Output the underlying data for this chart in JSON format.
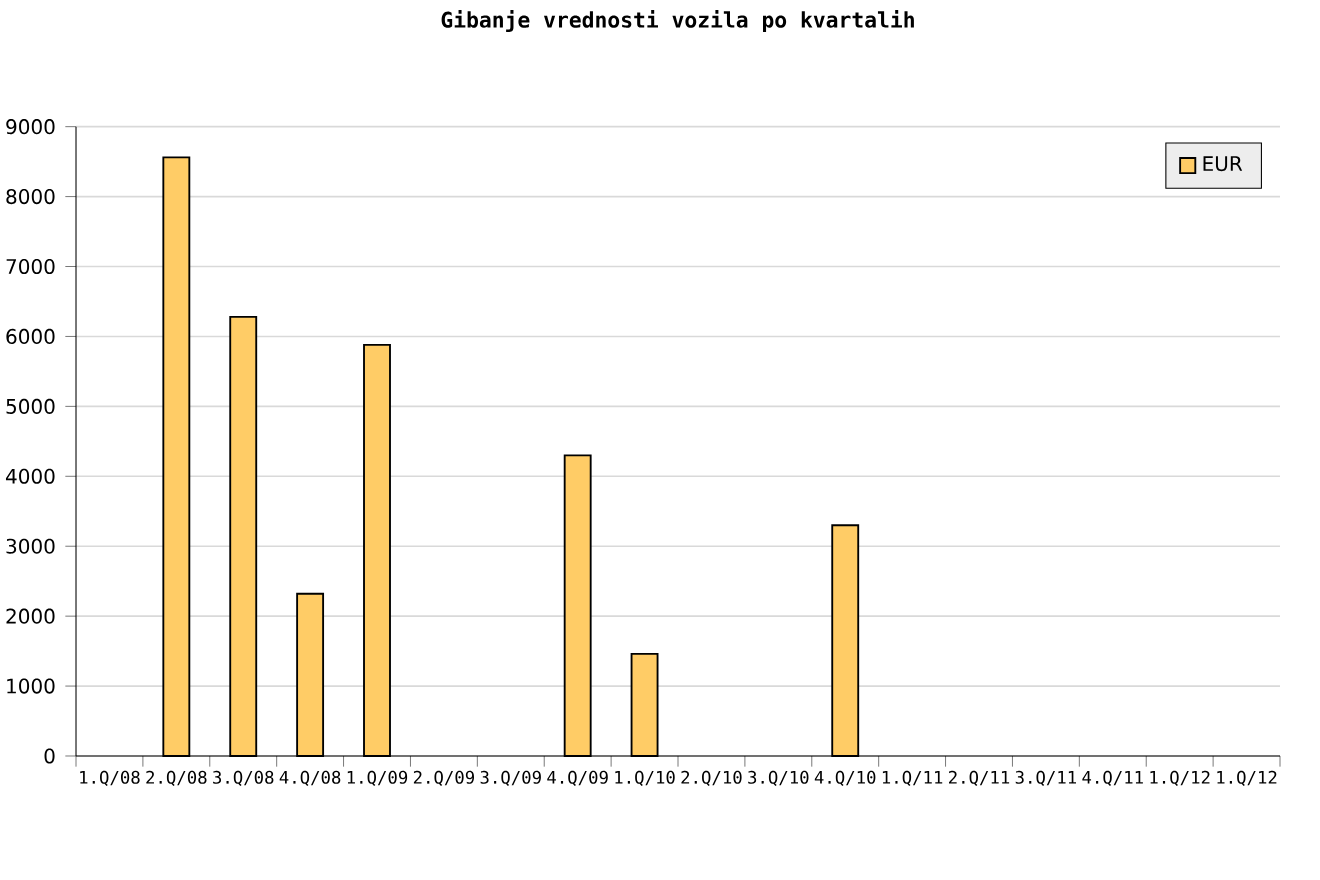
{
  "chart_data": {
    "type": "bar",
    "title": "Gibanje vrednosti vozila po kvartalih",
    "categories": [
      "1.Q/08",
      "2.Q/08",
      "3.Q/08",
      "4.Q/08",
      "1.Q/09",
      "2.Q/09",
      "3.Q/09",
      "4.Q/09",
      "1.Q/10",
      "2.Q/10",
      "3.Q/10",
      "4.Q/10",
      "1.Q/11",
      "2.Q/11",
      "3.Q/11",
      "4.Q/11",
      "1.Q/12",
      "1.Q/12"
    ],
    "series": [
      {
        "name": "EUR",
        "color": "#ffcc66",
        "values": [
          null,
          8560,
          6280,
          2320,
          5880,
          null,
          null,
          4300,
          1460,
          null,
          null,
          3300,
          null,
          null,
          null,
          null,
          null,
          null
        ]
      }
    ],
    "ylim": [
      0,
      9000
    ],
    "yticks": [
      0,
      1000,
      2000,
      3000,
      4000,
      5000,
      6000,
      7000,
      8000,
      9000
    ],
    "grid": "y",
    "legend": "top right"
  }
}
